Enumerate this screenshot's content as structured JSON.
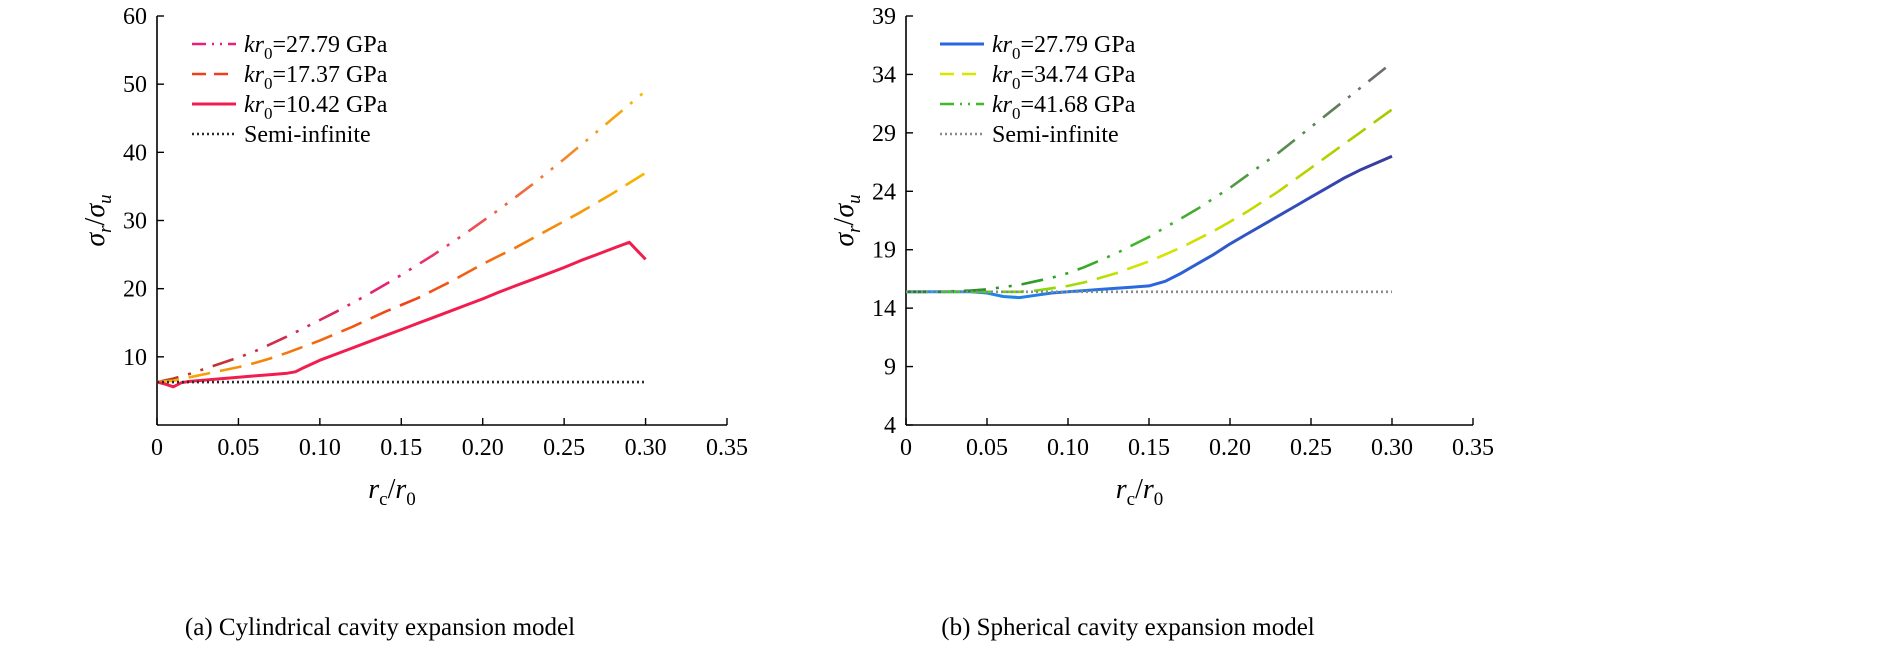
{
  "chart_data": [
    {
      "type": "line",
      "caption": "(a) Cylindrical cavity expansion model",
      "xlabel": {
        "main": "r",
        "sub": "c",
        "sep": "/",
        "main2": "r",
        "sub2": "0"
      },
      "ylabel": {
        "main": "σ",
        "sub": "r",
        "sep": "/",
        "main2": "σ",
        "sub2": "u"
      },
      "xlim": [
        0,
        0.35
      ],
      "ylim": [
        0,
        60
      ],
      "xticks": [
        0,
        0.05,
        0.1,
        0.15,
        0.2,
        0.25,
        0.3,
        0.35
      ],
      "xtick_labels": [
        "0",
        "0.05",
        "0.10",
        "0.15",
        "0.20",
        "0.25",
        "0.30",
        "0.35"
      ],
      "yticks": [
        10,
        20,
        30,
        40,
        50,
        60
      ],
      "ytick_labels": [
        "10",
        "20",
        "30",
        "40",
        "50",
        "60"
      ],
      "grid": false,
      "legend_position": "top-left",
      "series": [
        {
          "legend": {
            "prefix": "kr",
            "sub": "0",
            "suffix": "=27.79 GPa"
          },
          "colors": [
            "#b53a1e",
            "#e8207a",
            "#f7b800"
          ],
          "dash": "22 10 3 10 3 10",
          "x": [
            0,
            0.01,
            0.02,
            0.03,
            0.04,
            0.05,
            0.06,
            0.07,
            0.08,
            0.09,
            0.1,
            0.11,
            0.12,
            0.13,
            0.14,
            0.15,
            0.16,
            0.17,
            0.18,
            0.19,
            0.2,
            0.21,
            0.22,
            0.23,
            0.24,
            0.25,
            0.26,
            0.27,
            0.28,
            0.29,
            0.3
          ],
          "y": [
            6.3,
            6.8,
            7.5,
            8.3,
            9.1,
            9.9,
            10.8,
            11.9,
            13.0,
            14.2,
            15.4,
            16.6,
            17.9,
            19.2,
            20.6,
            22.0,
            23.5,
            25.0,
            26.6,
            28.2,
            29.9,
            31.6,
            33.4,
            35.2,
            37.1,
            39.0,
            41.0,
            43.0,
            45.0,
            47.0,
            49.0
          ]
        },
        {
          "legend": {
            "prefix": "kr",
            "sub": "0",
            "suffix": "=17.37 GPa"
          },
          "colors": [
            "#f7b800",
            "#ef4018",
            "#f7b800"
          ],
          "dash": "22 10",
          "x": [
            0,
            0.01,
            0.02,
            0.03,
            0.04,
            0.05,
            0.06,
            0.07,
            0.08,
            0.09,
            0.1,
            0.11,
            0.12,
            0.13,
            0.14,
            0.15,
            0.16,
            0.17,
            0.18,
            0.19,
            0.2,
            0.21,
            0.22,
            0.23,
            0.24,
            0.25,
            0.26,
            0.27,
            0.28,
            0.29,
            0.3
          ],
          "y": [
            6.3,
            6.5,
            7.0,
            7.5,
            8.0,
            8.5,
            9.1,
            9.8,
            10.6,
            11.5,
            12.4,
            13.4,
            14.4,
            15.5,
            16.6,
            17.6,
            18.6,
            19.8,
            21.0,
            22.3,
            23.6,
            24.8,
            26.0,
            27.3,
            28.6,
            29.9,
            31.2,
            32.6,
            34.0,
            35.5,
            37.0
          ]
        },
        {
          "legend": {
            "prefix": "kr",
            "sub": "0",
            "suffix": "=10.42 GPa"
          },
          "colors": [
            "#f21d4f",
            "#f21d4f",
            "#f21d4f"
          ],
          "dash": "",
          "x": [
            0,
            0.005,
            0.01,
            0.015,
            0.02,
            0.03,
            0.04,
            0.05,
            0.06,
            0.07,
            0.08,
            0.085,
            0.09,
            0.1,
            0.11,
            0.12,
            0.13,
            0.14,
            0.15,
            0.16,
            0.17,
            0.18,
            0.19,
            0.2,
            0.21,
            0.22,
            0.23,
            0.24,
            0.25,
            0.26,
            0.27,
            0.28,
            0.29,
            0.3
          ],
          "y": [
            6.3,
            6.0,
            5.6,
            6.2,
            6.4,
            6.6,
            6.8,
            7.0,
            7.2,
            7.4,
            7.6,
            7.8,
            8.4,
            9.5,
            10.4,
            11.3,
            12.2,
            13.1,
            14.0,
            14.9,
            15.8,
            16.7,
            17.6,
            18.5,
            19.5,
            20.4,
            21.3,
            22.2,
            23.1,
            24.1,
            25.0,
            25.9,
            26.8,
            24.3
          ]
        },
        {
          "legend": {
            "prefix": "",
            "sub": "",
            "suffix": "Semi-infinite"
          },
          "colors": [
            "#2b2b2b",
            "#2b2b2b",
            "#2b2b2b"
          ],
          "dash": "2 3",
          "x": [
            0,
            0.3
          ],
          "y": [
            6.3,
            6.3
          ]
        }
      ]
    },
    {
      "type": "line",
      "caption": "(b) Spherical cavity expansion model",
      "xlabel": {
        "main": "r",
        "sub": "c",
        "sep": "/",
        "main2": "r",
        "sub2": "0"
      },
      "ylabel": {
        "main": "σ",
        "sub": "r",
        "sep": "/",
        "main2": "σ",
        "sub2": "u"
      },
      "xlim": [
        0,
        0.35
      ],
      "ylim": [
        4,
        39
      ],
      "xticks": [
        0,
        0.05,
        0.1,
        0.15,
        0.2,
        0.25,
        0.3,
        0.35
      ],
      "xtick_labels": [
        "0",
        "0.05",
        "0.10",
        "0.15",
        "0.20",
        "0.25",
        "0.30",
        "0.35"
      ],
      "yticks": [
        4,
        9,
        14,
        19,
        24,
        29,
        34,
        39
      ],
      "ytick_labels": [
        "4",
        "9",
        "14",
        "19",
        "24",
        "29",
        "34",
        "39"
      ],
      "grid": false,
      "legend_position": "top-left",
      "series": [
        {
          "legend": {
            "prefix": "kr",
            "sub": "0",
            "suffix": "=27.79 GPa"
          },
          "colors": [
            "#1a9be6",
            "#2a66e0",
            "#3a3a9e"
          ],
          "dash": "",
          "x": [
            0,
            0.02,
            0.04,
            0.05,
            0.06,
            0.07,
            0.08,
            0.09,
            0.1,
            0.11,
            0.12,
            0.13,
            0.14,
            0.15,
            0.16,
            0.17,
            0.18,
            0.19,
            0.2,
            0.21,
            0.22,
            0.23,
            0.24,
            0.25,
            0.26,
            0.27,
            0.28,
            0.29,
            0.3
          ],
          "y": [
            15.4,
            15.4,
            15.4,
            15.3,
            15.0,
            14.9,
            15.1,
            15.3,
            15.4,
            15.5,
            15.6,
            15.7,
            15.8,
            15.9,
            16.3,
            17.0,
            17.8,
            18.6,
            19.5,
            20.3,
            21.1,
            21.9,
            22.7,
            23.5,
            24.3,
            25.1,
            25.8,
            26.4,
            27.0
          ]
        },
        {
          "legend": {
            "prefix": "kr",
            "sub": "0",
            "suffix": "=34.74 GPa"
          },
          "colors": [
            "#22c40f",
            "#d8e600",
            "#a8c800"
          ],
          "dash": "22 10",
          "x": [
            0,
            0.02,
            0.04,
            0.05,
            0.06,
            0.07,
            0.08,
            0.09,
            0.1,
            0.11,
            0.12,
            0.13,
            0.14,
            0.15,
            0.16,
            0.17,
            0.18,
            0.19,
            0.2,
            0.21,
            0.22,
            0.23,
            0.24,
            0.25,
            0.26,
            0.27,
            0.28,
            0.29,
            0.3
          ],
          "y": [
            15.4,
            15.4,
            15.4,
            15.4,
            15.4,
            15.4,
            15.5,
            15.7,
            15.9,
            16.2,
            16.6,
            17.0,
            17.5,
            18.0,
            18.6,
            19.2,
            19.9,
            20.6,
            21.4,
            22.2,
            23.1,
            24.0,
            25.0,
            26.0,
            27.0,
            28.0,
            29.0,
            30.0,
            31.0
          ]
        },
        {
          "legend": {
            "prefix": "kr",
            "sub": "0",
            "suffix": "=41.68 GPa"
          },
          "colors": [
            "#1f7d2a",
            "#40b82a",
            "#6b6b6b"
          ],
          "dash": "22 10 3 10 3 10",
          "x": [
            0,
            0.02,
            0.04,
            0.05,
            0.06,
            0.07,
            0.08,
            0.09,
            0.1,
            0.11,
            0.12,
            0.13,
            0.14,
            0.15,
            0.16,
            0.17,
            0.18,
            0.19,
            0.2,
            0.21,
            0.22,
            0.23,
            0.24,
            0.25,
            0.26,
            0.27,
            0.28,
            0.29,
            0.3
          ],
          "y": [
            15.4,
            15.4,
            15.5,
            15.6,
            15.8,
            16.0,
            16.3,
            16.6,
            17.0,
            17.5,
            18.1,
            18.7,
            19.4,
            20.1,
            20.9,
            21.7,
            22.5,
            23.4,
            24.3,
            25.3,
            26.3,
            27.3,
            28.4,
            29.5,
            30.6,
            31.7,
            32.8,
            33.9,
            35.0
          ]
        },
        {
          "legend": {
            "prefix": "",
            "sub": "",
            "suffix": "Semi-infinite"
          },
          "colors": [
            "#8a8a8a",
            "#8a8a8a",
            "#8a8a8a"
          ],
          "dash": "2 3",
          "x": [
            0,
            0.3
          ],
          "y": [
            15.4,
            15.4
          ]
        }
      ]
    }
  ]
}
